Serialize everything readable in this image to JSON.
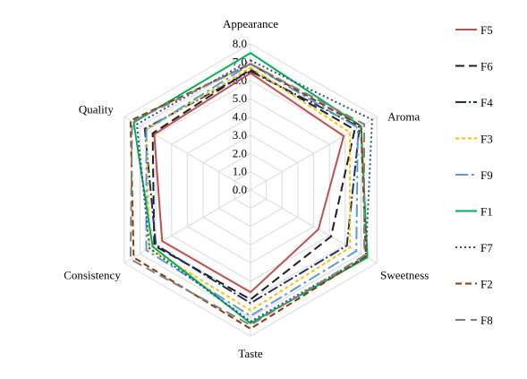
{
  "chart_data": {
    "type": "radar",
    "title": "",
    "axes": [
      "Appearance",
      "Aroma",
      "Sweetness",
      "Taste",
      "Consistency",
      "Quality"
    ],
    "rlim": [
      0,
      8
    ],
    "ticks": [
      "0.0",
      "1.0",
      "2.0",
      "3.0",
      "4.0",
      "5.0",
      "6.0",
      "7.0",
      "8.0"
    ],
    "grid": true,
    "legend": "right",
    "series": [
      {
        "name": "F5",
        "values": [
          6.4,
          5.9,
          4.3,
          5.6,
          5.6,
          6.1
        ],
        "color": "#C0504D",
        "dash": ""
      },
      {
        "name": "F6",
        "values": [
          6.6,
          6.6,
          5.1,
          6.0,
          6.1,
          6.2
        ],
        "color": "#1F1F1F",
        "dash": "10 5"
      },
      {
        "name": "F4",
        "values": [
          6.5,
          6.9,
          6.1,
          6.2,
          6.0,
          6.7
        ],
        "color": "#1F2D5C",
        "dash": "12 3 2 3"
      },
      {
        "name": "F3",
        "values": [
          6.7,
          6.3,
          6.3,
          6.6,
          6.4,
          6.6
        ],
        "color": "#FFC000",
        "dash": "4 3"
      },
      {
        "name": "F9",
        "values": [
          6.9,
          6.8,
          6.7,
          6.9,
          6.6,
          6.6
        ],
        "color": "#5B9BD5",
        "dash": "14 4 3 4"
      },
      {
        "name": "F1",
        "values": [
          7.5,
          7.0,
          7.4,
          7.3,
          6.2,
          7.4
        ],
        "color": "#00B050",
        "dash": ""
      },
      {
        "name": "F7",
        "values": [
          7.1,
          7.7,
          7.3,
          7.2,
          6.4,
          7.2
        ],
        "color": "#2F4A8A",
        "dash": "2 3"
      },
      {
        "name": "F2",
        "values": [
          6.9,
          7.0,
          7.3,
          7.6,
          7.4,
          7.6
        ],
        "color": "#843C0C",
        "dash": "7 4"
      },
      {
        "name": "F8",
        "values": [
          6.9,
          7.2,
          7.2,
          7.4,
          7.6,
          7.5
        ],
        "color": "#808080",
        "dash": "11 6"
      }
    ]
  }
}
